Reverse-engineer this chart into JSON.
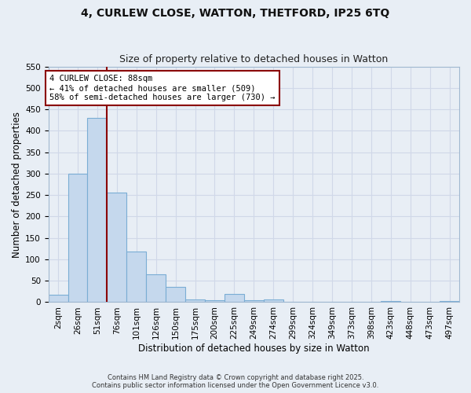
{
  "title_line1": "4, CURLEW CLOSE, WATTON, THETFORD, IP25 6TQ",
  "title_line2": "Size of property relative to detached houses in Watton",
  "xlabel": "Distribution of detached houses by size in Watton",
  "ylabel": "Number of detached properties",
  "bar_color": "#c5d8ed",
  "bar_edge_color": "#7aadd4",
  "bg_color": "#e8eef5",
  "grid_color": "#d0d8e8",
  "categories": [
    "2sqm",
    "26sqm",
    "51sqm",
    "76sqm",
    "101sqm",
    "126sqm",
    "150sqm",
    "175sqm",
    "200sqm",
    "225sqm",
    "249sqm",
    "274sqm",
    "299sqm",
    "324sqm",
    "349sqm",
    "373sqm",
    "398sqm",
    "423sqm",
    "448sqm",
    "473sqm",
    "497sqm"
  ],
  "values": [
    18,
    300,
    430,
    255,
    118,
    65,
    35,
    7,
    5,
    20,
    5,
    7,
    1,
    0,
    0,
    0,
    0,
    3,
    0,
    0,
    3
  ],
  "ylim": [
    0,
    550
  ],
  "yticks": [
    0,
    50,
    100,
    150,
    200,
    250,
    300,
    350,
    400,
    450,
    500,
    550
  ],
  "property_line_x": 2.5,
  "property_line_color": "#8b0000",
  "annotation_text": "4 CURLEW CLOSE: 88sqm\n← 41% of detached houses are smaller (509)\n58% of semi-detached houses are larger (730) →",
  "annotation_box_color": "#8b0000",
  "annotation_bg": "#ffffff",
  "footer_line1": "Contains HM Land Registry data © Crown copyright and database right 2025.",
  "footer_line2": "Contains public sector information licensed under the Open Government Licence v3.0.",
  "title_fontsize": 10,
  "subtitle_fontsize": 9,
  "tick_fontsize": 7.5,
  "axis_label_fontsize": 8.5
}
